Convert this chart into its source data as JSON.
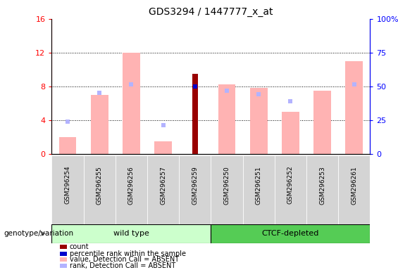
{
  "title": "GDS3294 / 1447777_x_at",
  "samples": [
    "GSM296254",
    "GSM296255",
    "GSM296256",
    "GSM296257",
    "GSM296259",
    "GSM296250",
    "GSM296251",
    "GSM296252",
    "GSM296253",
    "GSM296261"
  ],
  "absent_value_bars": [
    2.0,
    7.0,
    12.0,
    1.5,
    null,
    8.2,
    7.8,
    5.0,
    7.5,
    11.0
  ],
  "absent_rank_squares": [
    3.8,
    7.2,
    8.2,
    3.4,
    null,
    7.5,
    7.1,
    6.2,
    null,
    8.2
  ],
  "count_bars": [
    null,
    null,
    null,
    null,
    9.5,
    null,
    null,
    null,
    null,
    null
  ],
  "percentile_squares": [
    null,
    null,
    null,
    null,
    8.0,
    null,
    null,
    null,
    null,
    null
  ],
  "ylim_left": [
    0,
    16
  ],
  "ylim_right": [
    0,
    100
  ],
  "yticks_left": [
    0,
    4,
    8,
    12,
    16
  ],
  "yticks_right": [
    0,
    25,
    50,
    75,
    100
  ],
  "color_absent_value": "#ffb3b3",
  "color_absent_rank": "#b3b3ff",
  "color_count": "#990000",
  "color_percentile": "#0000cc",
  "color_wild_type_bg": "#ccffcc",
  "color_ctcf_bg": "#55cc55",
  "color_sample_bg": "#d4d4d4",
  "group_label": "genotype/variation",
  "wild_type_label": "wild type",
  "ctcf_label": "CTCF-depleted",
  "legend_items": [
    {
      "label": "count",
      "color": "#990000"
    },
    {
      "label": "percentile rank within the sample",
      "color": "#0000cc"
    },
    {
      "label": "value, Detection Call = ABSENT",
      "color": "#ffb3b3"
    },
    {
      "label": "rank, Detection Call = ABSENT",
      "color": "#b3b3ff"
    }
  ]
}
